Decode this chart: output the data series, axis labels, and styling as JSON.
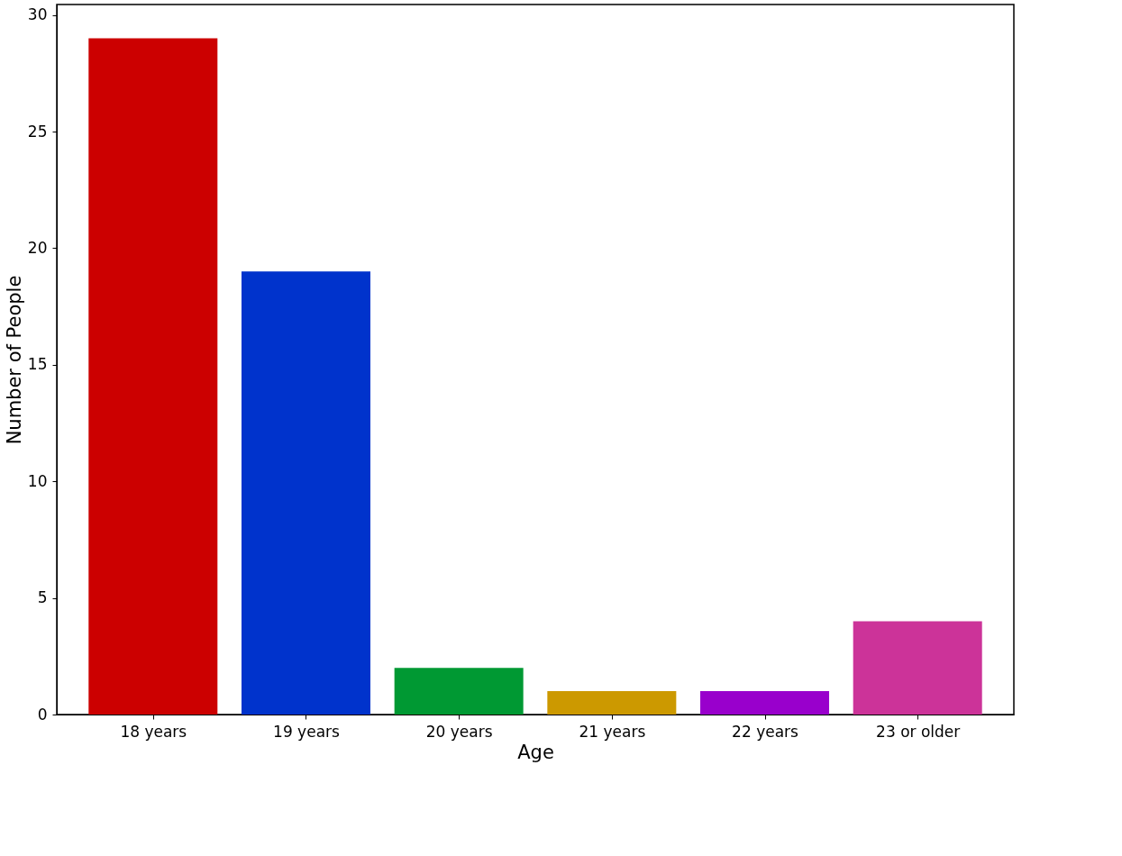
{
  "chart_data": {
    "type": "bar",
    "xlabel": "Age",
    "ylabel": "Number of People",
    "categories": [
      "18 years",
      "19 years",
      "20 years",
      "21 years",
      "22 years",
      "23 or older"
    ],
    "values": [
      29,
      19,
      2,
      1,
      1,
      4
    ],
    "colors": [
      "#cc0000",
      "#0033cc",
      "#009933",
      "#cc9900",
      "#9900cc",
      "#cc3399"
    ],
    "ylim": [
      0,
      30.45
    ],
    "yticks": [
      0,
      5,
      10,
      15,
      20,
      25,
      30
    ],
    "grid": false
  }
}
